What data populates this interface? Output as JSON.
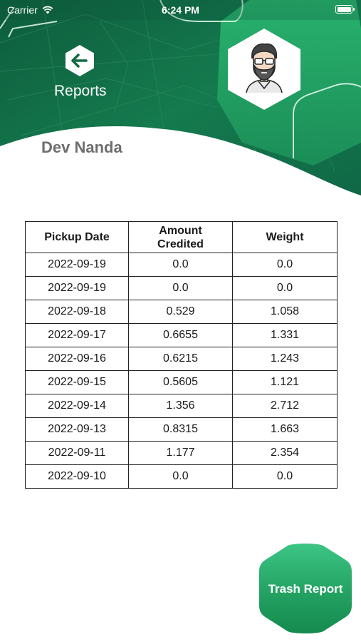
{
  "status_bar": {
    "carrier": "Carrier",
    "time": "6:24 PM"
  },
  "header": {
    "title": "Reports",
    "back_icon": "arrow-left-icon",
    "avatar_icon": "bearded-man-avatar-icon"
  },
  "user": {
    "name": "Dev Nanda"
  },
  "table": {
    "headers": {
      "date": "Pickup Date",
      "amount_line1": "Amount",
      "amount_line2": "Credited",
      "weight": "Weight"
    },
    "rows": [
      {
        "date": "2022-09-19",
        "amount": "0.0",
        "weight": "0.0"
      },
      {
        "date": "2022-09-19",
        "amount": "0.0",
        "weight": "0.0"
      },
      {
        "date": "2022-09-18",
        "amount": "0.529",
        "weight": "1.058"
      },
      {
        "date": "2022-09-17",
        "amount": "0.6655",
        "weight": "1.331"
      },
      {
        "date": "2022-09-16",
        "amount": "0.6215",
        "weight": "1.243"
      },
      {
        "date": "2022-09-15",
        "amount": "0.5605",
        "weight": "1.121"
      },
      {
        "date": "2022-09-14",
        "amount": "1.356",
        "weight": "2.712"
      },
      {
        "date": "2022-09-13",
        "amount": "0.8315",
        "weight": "1.663"
      },
      {
        "date": "2022-09-11",
        "amount": "1.177",
        "weight": "2.354"
      },
      {
        "date": "2022-09-10",
        "amount": "0.0",
        "weight": "0.0"
      }
    ]
  },
  "actions": {
    "trash_report_label": "Trash Report"
  },
  "colors": {
    "brand_green_dark": "#0f6b44",
    "brand_green": "#1f9a5c",
    "brand_green_light": "#2cb673",
    "text_gray": "#6e6e6e"
  }
}
